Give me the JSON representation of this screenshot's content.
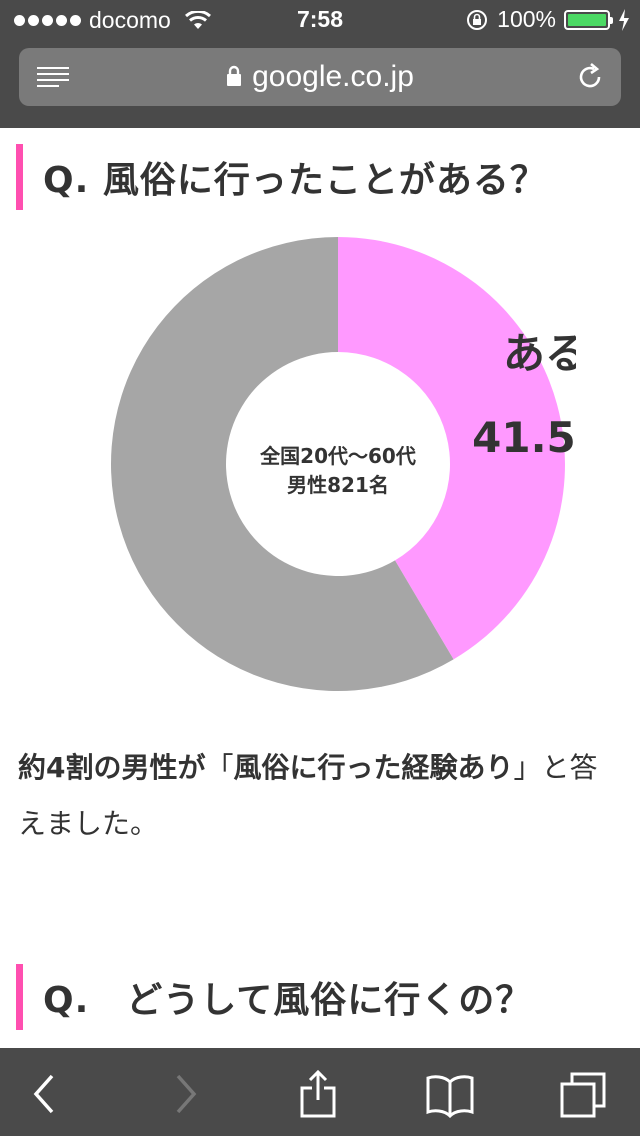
{
  "status_bar": {
    "carrier": "docomo",
    "time": "7:58",
    "battery_percent": "100%",
    "battery_level": 1.0
  },
  "browser": {
    "url": "google.co.jp",
    "icons": [
      "reader-icon",
      "lock-icon",
      "reload-icon"
    ]
  },
  "article": {
    "question1": "Q. 風俗に行ったことがある？",
    "chart_center_line1": "全国20代～60代",
    "chart_center_line2": "男性821名",
    "chart_slice_label": "ある",
    "chart_slice_value": "41.5%",
    "answer_bold1": "約4割の男性が",
    "answer_quote_open": "「",
    "answer_bold2": "風俗に行った経験あり",
    "answer_quote_close": "」",
    "answer_rest": "と答えました。",
    "question2": "Q.　どうして風俗に行くの？"
  },
  "toolbar": {
    "icons": [
      "back-icon",
      "forward-icon",
      "share-icon",
      "bookmarks-icon",
      "tabs-icon"
    ]
  },
  "colors": {
    "accent_pink": "#ff4fb0",
    "slice_yes": "#ff99ff",
    "slice_rest": "#a6a6a6",
    "chrome": "#4a4a4a"
  },
  "chart_data": {
    "type": "pie",
    "donut": true,
    "categories": [
      "ある",
      ""
    ],
    "values": [
      41.5,
      58.5
    ],
    "data_labels": [
      "41.5%",
      ""
    ]
  }
}
